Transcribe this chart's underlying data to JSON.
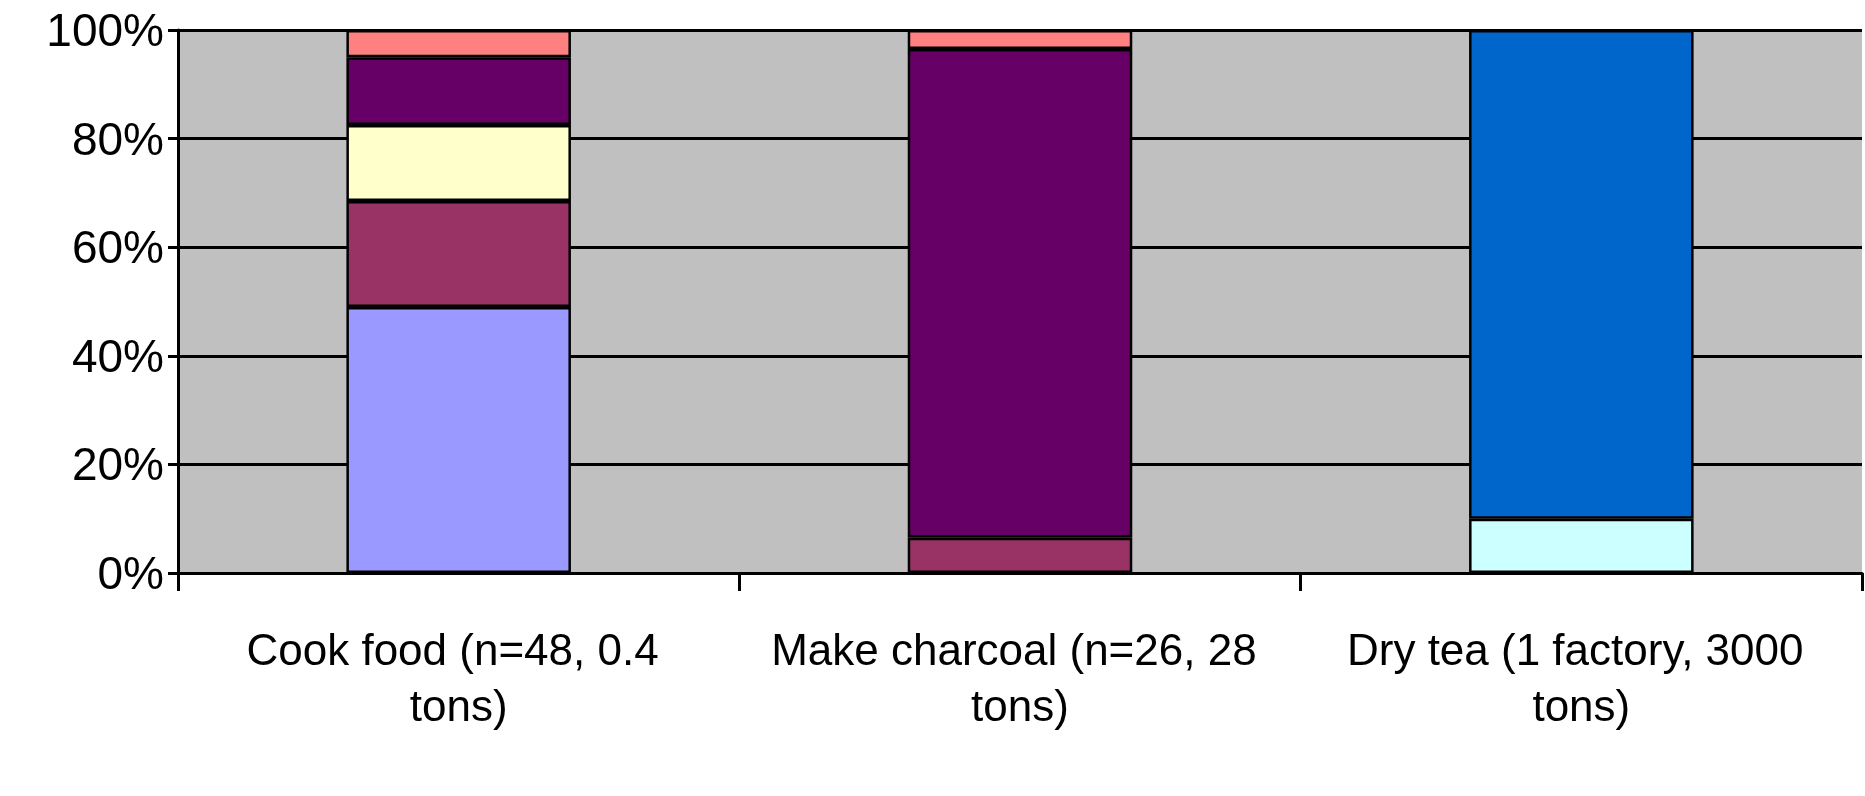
{
  "chart_data": {
    "type": "bar",
    "stacked": true,
    "categories": [
      "Cook food (n=48, 0.4 tons)",
      "Make charcoal (n=26, 28 tons)",
      "Dry tea (1 factory, 3000 tons)"
    ],
    "series": [
      {
        "color": "#9999ff",
        "values": [
          49,
          null,
          null
        ]
      },
      {
        "color": "#993366",
        "values": [
          19.5,
          6.5,
          null
        ]
      },
      {
        "color": "#ffffcc",
        "values": [
          14,
          null,
          null
        ]
      },
      {
        "color": "#660066",
        "values": [
          12.5,
          90,
          null
        ]
      },
      {
        "color": "#ff8080",
        "values": [
          5,
          3.5,
          null
        ]
      },
      {
        "color": "#ccffff",
        "values": [
          null,
          null,
          10
        ]
      },
      {
        "color": "#0066cc",
        "values": [
          null,
          null,
          90
        ]
      }
    ],
    "ylim": [
      0,
      100
    ],
    "yticks": [
      {
        "value": 0,
        "label": "0%"
      },
      {
        "value": 20,
        "label": "20%"
      },
      {
        "value": 40,
        "label": "40%"
      },
      {
        "value": 60,
        "label": "60%"
      },
      {
        "value": 80,
        "label": "80%"
      },
      {
        "value": 100,
        "label": "100%"
      }
    ],
    "grid": "y",
    "legend": false
  }
}
